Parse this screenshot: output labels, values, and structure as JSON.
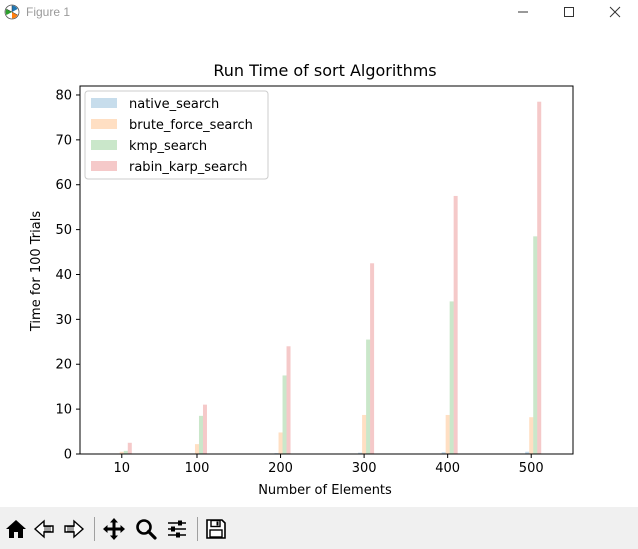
{
  "window": {
    "title": "Figure 1",
    "controls": [
      "minimize-icon",
      "maximize-icon",
      "close-icon"
    ]
  },
  "toolbar": {
    "buttons": [
      "home-icon",
      "back-arrow-icon",
      "forward-arrow-icon",
      "pan-icon",
      "zoom-icon",
      "configure-subplots-icon",
      "save-icon"
    ]
  },
  "chart_data": {
    "type": "bar",
    "title": "Run Time of sort Algorithms",
    "xlabel": "Number of Elements",
    "ylabel": "Time for 100 Trials",
    "categories": [
      10,
      100,
      200,
      300,
      400,
      500
    ],
    "xlim": [
      -40,
      550
    ],
    "ylim": [
      0,
      82
    ],
    "xticks": [
      10,
      100,
      200,
      300,
      400,
      500
    ],
    "yticks": [
      0,
      10,
      20,
      30,
      40,
      50,
      60,
      70,
      80
    ],
    "grid": false,
    "legend_position": "upper-left",
    "series": [
      {
        "name": "native_search",
        "color": "#1f77b4",
        "values": [
          0.02,
          0.1,
          0.2,
          0.3,
          0.4,
          0.5
        ]
      },
      {
        "name": "brute_force_search",
        "color": "#ff7f0e",
        "values": [
          0.5,
          2.2,
          4.8,
          8.7,
          8.7,
          8.2
        ]
      },
      {
        "name": "kmp_search",
        "color": "#2ca02c",
        "values": [
          0.7,
          8.5,
          17.5,
          25.5,
          34.0,
          48.5
        ]
      },
      {
        "name": "rabin_karp_search",
        "color": "#d62728",
        "values": [
          2.5,
          11.0,
          24.0,
          42.5,
          57.5,
          78.5
        ]
      }
    ]
  }
}
